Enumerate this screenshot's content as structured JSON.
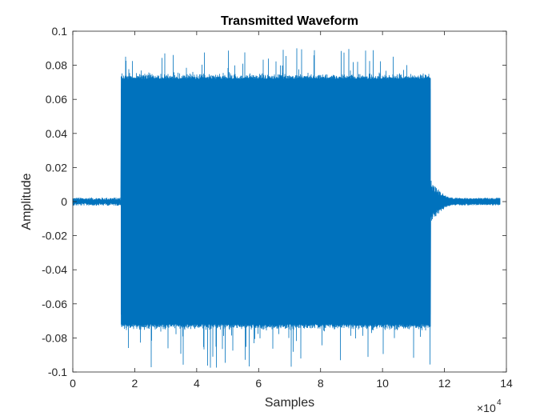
{
  "chart_data": {
    "type": "line",
    "title": "Transmitted Waveform",
    "xlabel": "Samples",
    "ylabel": "Amplitude",
    "xlim": [
      0,
      140000
    ],
    "ylim": [
      -0.1,
      0.1
    ],
    "x_ticks": [
      0,
      20000,
      40000,
      60000,
      80000,
      100000,
      120000,
      140000
    ],
    "x_tick_labels": [
      "0",
      "2",
      "4",
      "6",
      "8",
      "10",
      "12",
      "14"
    ],
    "x_exponent_base": "×10",
    "x_exponent_power": "4",
    "y_ticks": [
      -0.1,
      -0.08,
      -0.06,
      -0.04,
      -0.02,
      0,
      0.02,
      0.04,
      0.06,
      0.08,
      0.1
    ],
    "y_tick_labels": [
      "-0.1",
      "-0.08",
      "-0.06",
      "-0.04",
      "-0.02",
      "0",
      "0.02",
      "0.04",
      "0.06",
      "0.08",
      "0.1"
    ],
    "grid": false,
    "line_color": "#0072BD",
    "series": [
      {
        "x_start": 0,
        "x_end": 138000,
        "burst_start": 15500,
        "burst_end": 115500,
        "burst_envelope_typical": 0.072,
        "burst_peak_max": 0.09,
        "burst_peak_min": -0.098,
        "quiet_envelope": 0.002,
        "decay_tail_start_amplitude": 0.01
      }
    ]
  }
}
